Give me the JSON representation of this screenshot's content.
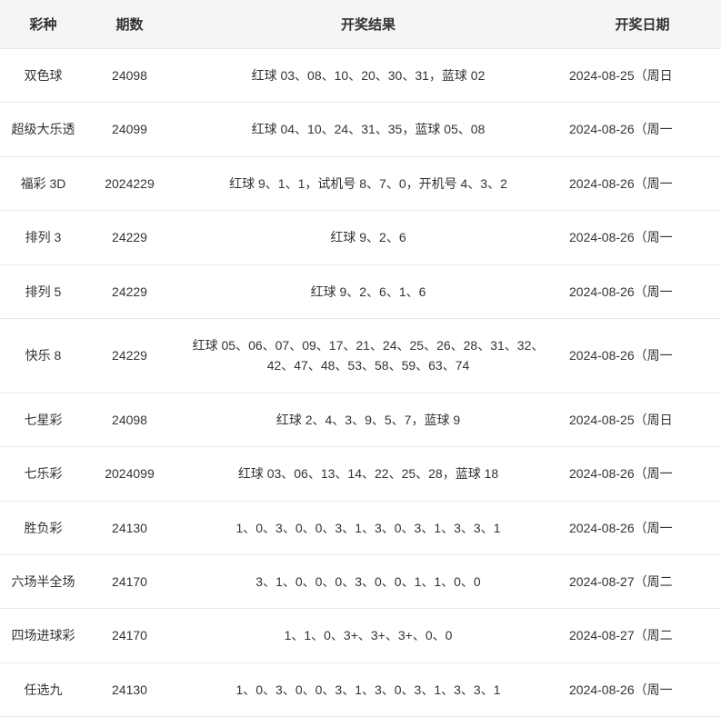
{
  "table": {
    "columns": [
      {
        "key": "type",
        "label": "彩种",
        "class": "col-type"
      },
      {
        "key": "issue",
        "label": "期数",
        "class": "col-issue"
      },
      {
        "key": "result",
        "label": "开奖结果",
        "class": "col-result"
      },
      {
        "key": "date",
        "label": "开奖日期",
        "class": "col-date"
      }
    ],
    "rows": [
      {
        "type": "双色球",
        "issue": "24098",
        "result": "红球 03、08、10、20、30、31，蓝球 02",
        "date": "2024-08-25（周日"
      },
      {
        "type": "超级大乐透",
        "issue": "24099",
        "result": "红球 04、10、24、31、35，蓝球 05、08",
        "date": "2024-08-26（周一"
      },
      {
        "type": "福彩 3D",
        "issue": "2024229",
        "result": "红球 9、1、1，试机号 8、7、0，开机号 4、3、2",
        "date": "2024-08-26（周一"
      },
      {
        "type": "排列 3",
        "issue": "24229",
        "result": "红球 9、2、6",
        "date": "2024-08-26（周一"
      },
      {
        "type": "排列 5",
        "issue": "24229",
        "result": "红球 9、2、6、1、6",
        "date": "2024-08-26（周一"
      },
      {
        "type": "快乐 8",
        "issue": "24229",
        "result": "红球 05、06、07、09、17、21、24、25、26、28、31、32、42、47、48、53、58、59、63、74",
        "date": "2024-08-26（周一"
      },
      {
        "type": "七星彩",
        "issue": "24098",
        "result": "红球 2、4、3、9、5、7，蓝球 9",
        "date": "2024-08-25（周日"
      },
      {
        "type": "七乐彩",
        "issue": "2024099",
        "result": "红球 03、06、13、14、22、25、28，蓝球 18",
        "date": "2024-08-26（周一"
      },
      {
        "type": "胜负彩",
        "issue": "24130",
        "result": "1、0、3、0、0、3、1、3、0、3、1、3、3、1",
        "date": "2024-08-26（周一"
      },
      {
        "type": "六场半全场",
        "issue": "24170",
        "result": "3、1、0、0、0、3、0、0、1、1、0、0",
        "date": "2024-08-27（周二"
      },
      {
        "type": "四场进球彩",
        "issue": "24170",
        "result": "1、1、0、3+、3+、3+、0、0",
        "date": "2024-08-27（周二"
      },
      {
        "type": "任选九",
        "issue": "24130",
        "result": "1、0、3、0、0、3、1、3、0、3、1、3、3、1",
        "date": "2024-08-26（周一"
      }
    ],
    "styles": {
      "header_bg": "#f5f5f5",
      "border_color": "#e8e8e8",
      "text_color": "#333333",
      "header_fontsize": 15,
      "cell_fontsize": 14
    }
  }
}
